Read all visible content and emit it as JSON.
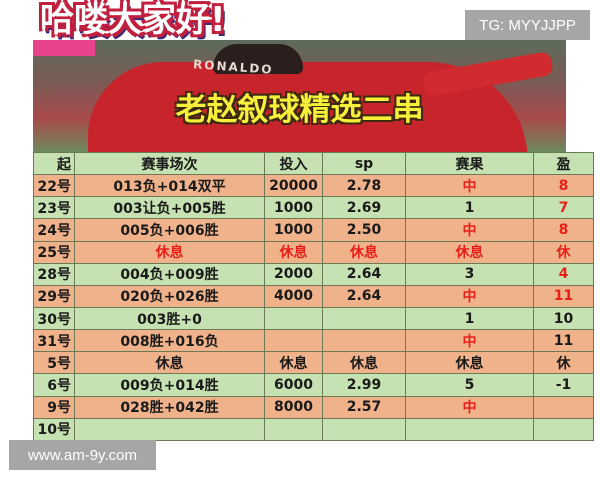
{
  "watermark_top": "TG: MYYJJPP",
  "watermark_bottom": "www.am-9y.com",
  "banner": {
    "title": "老赵叙球精选二串",
    "jersey_text": "RONALDO"
  },
  "overlay_caption": "哈喽大家好!",
  "colors": {
    "row_green": "#c7e2b2",
    "row_orange": "#f0b28a",
    "highlight_red": "#e8201a",
    "title_yellow": "#f7f03a"
  },
  "table": {
    "headers": [
      "起",
      "赛事场次",
      "投入",
      "sp",
      "赛果",
      "盈"
    ],
    "rows": [
      {
        "style": "o",
        "cells": [
          "22号",
          "013负+014双平",
          "20000",
          "2.78",
          "中",
          "8"
        ],
        "red": [
          4,
          5
        ]
      },
      {
        "style": "g",
        "cells": [
          "23号",
          "003让负+005胜",
          "1000",
          "2.69",
          "1",
          "7"
        ],
        "red": [
          5
        ]
      },
      {
        "style": "o",
        "cells": [
          "24号",
          "005负+006胜",
          "1000",
          "2.50",
          "中",
          "8"
        ],
        "red": [
          4,
          5
        ]
      },
      {
        "style": "o",
        "cells": [
          "25号",
          "休息",
          "休息",
          "休息",
          "休息",
          "休"
        ],
        "red": [
          1,
          2,
          3,
          4,
          5
        ]
      },
      {
        "style": "g",
        "cells": [
          "28号",
          "004负+009胜",
          "2000",
          "2.64",
          "3",
          "4"
        ],
        "red": [
          5
        ]
      },
      {
        "style": "o",
        "cells": [
          "29号",
          "020负+026胜",
          "4000",
          "2.64",
          "中",
          "11"
        ],
        "red": [
          4,
          5
        ]
      },
      {
        "style": "g",
        "cells": [
          "30号",
          "003胜+0",
          "",
          "",
          "1",
          "10"
        ],
        "red": []
      },
      {
        "style": "o",
        "cells": [
          "31号",
          "008胜+016负",
          "",
          "",
          "中",
          "11"
        ],
        "red": [
          4
        ]
      },
      {
        "style": "o",
        "cells": [
          "5号",
          "休息",
          "休息",
          "休息",
          "休息",
          "休"
        ],
        "red": []
      },
      {
        "style": "g",
        "cells": [
          "6号",
          "009负+014胜",
          "6000",
          "2.99",
          "5",
          "-1"
        ],
        "red": []
      },
      {
        "style": "o",
        "cells": [
          "9号",
          "028胜+042胜",
          "8000",
          "2.57",
          "中",
          ""
        ],
        "red": [
          4
        ]
      },
      {
        "style": "g",
        "cells": [
          "10号",
          "",
          "",
          "",
          "",
          ""
        ],
        "red": []
      }
    ]
  }
}
